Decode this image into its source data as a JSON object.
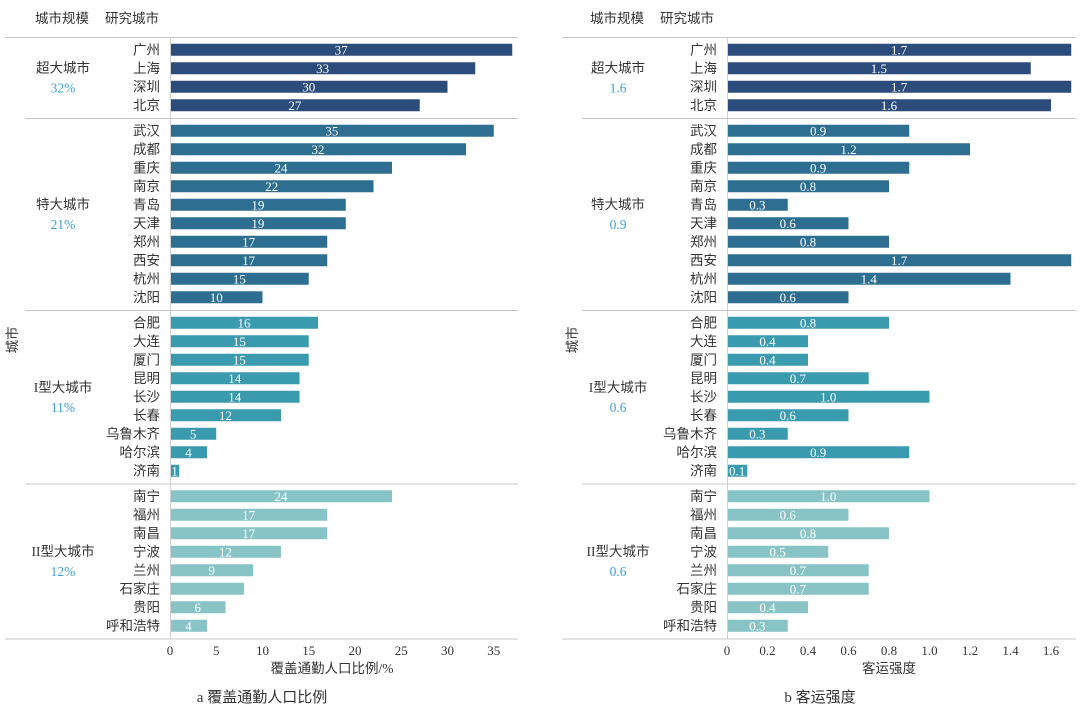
{
  "chart_data": [
    {
      "type": "bar",
      "orientation": "horizontal",
      "title": "a 覆盖通勤人口比例",
      "xlabel": "覆盖通勤人口比例/%",
      "ylabel": "城市",
      "header": {
        "group_column": "城市规模",
        "category_column": "研究城市"
      },
      "xlim": [
        0,
        37
      ],
      "grid": false,
      "xticks": [
        {
          "value": 0,
          "label": "0"
        },
        {
          "value": 5,
          "label": "5"
        },
        {
          "value": 10,
          "label": "10"
        },
        {
          "value": 15,
          "label": "15"
        },
        {
          "value": 20,
          "label": "20"
        },
        {
          "value": 25,
          "label": "25"
        },
        {
          "value": 30,
          "label": "30"
        },
        {
          "value": 35,
          "label": "35"
        }
      ],
      "summary_color": "#3a9fd3",
      "bar_label_color": "#ffffff",
      "groups": [
        {
          "name": "超大城市",
          "summary": "32%",
          "color": "#2c4c7c",
          "cities": [
            "广州",
            "上海",
            "深圳",
            "北京"
          ],
          "values": [
            37,
            33,
            30,
            27
          ],
          "labels": [
            "37",
            "33",
            "30",
            "27"
          ]
        },
        {
          "name": "特大城市",
          "summary": "21%",
          "color": "#2d6e91",
          "cities": [
            "武汉",
            "成都",
            "重庆",
            "南京",
            "青岛",
            "天津",
            "郑州",
            "西安",
            "杭州",
            "沈阳"
          ],
          "values": [
            35,
            32,
            24,
            22,
            19,
            19,
            17,
            17,
            15,
            10
          ],
          "labels": [
            "35",
            "32",
            "24",
            "22",
            "19",
            "19",
            "17",
            "17",
            "15",
            "10"
          ]
        },
        {
          "name": "I型大城市",
          "summary": "11%",
          "color": "#3a9aae",
          "cities": [
            "合肥",
            "大连",
            "厦门",
            "昆明",
            "长沙",
            "长春",
            "乌鲁木齐",
            "哈尔滨",
            "济南"
          ],
          "values": [
            16,
            15,
            15,
            14,
            14,
            12,
            5,
            4,
            1
          ],
          "labels": [
            "16",
            "15",
            "15",
            "14",
            "14",
            "12",
            "5",
            "4",
            "1"
          ]
        },
        {
          "name": "II型大城市",
          "summary": "12%",
          "color": "#88c4c5",
          "cities": [
            "南宁",
            "福州",
            "南昌",
            "宁波",
            "兰州",
            "石家庄",
            "贵阳",
            "呼和浩特"
          ],
          "values": [
            24,
            17,
            17,
            12,
            9,
            8,
            6,
            4
          ],
          "labels": [
            "24",
            "17",
            "17",
            "12",
            "9",
            null,
            "6",
            "4"
          ]
        }
      ]
    },
    {
      "type": "bar",
      "orientation": "horizontal",
      "title": "b 客运强度",
      "xlabel": "客运强度",
      "ylabel": "城市",
      "header": {
        "group_column": "城市规模",
        "category_column": "研究城市"
      },
      "xlim": [
        0,
        1.7
      ],
      "grid": false,
      "xticks": [
        {
          "value": 0,
          "label": "0"
        },
        {
          "value": 0.2,
          "label": "0.2"
        },
        {
          "value": 0.4,
          "label": "0.4"
        },
        {
          "value": 0.6,
          "label": "0.6"
        },
        {
          "value": 0.8,
          "label": "0.8"
        },
        {
          "value": 1.0,
          "label": "1.0"
        },
        {
          "value": 1.2,
          "label": "1.2"
        },
        {
          "value": 1.4,
          "label": "1.4"
        },
        {
          "value": 1.6,
          "label": "1.6"
        }
      ],
      "summary_color": "#3a9fd3",
      "bar_label_color": "#ffffff",
      "groups": [
        {
          "name": "超大城市",
          "summary": "1.6",
          "color": "#2c4c7c",
          "cities": [
            "广州",
            "上海",
            "深圳",
            "北京"
          ],
          "values": [
            1.7,
            1.5,
            1.7,
            1.6
          ],
          "labels": [
            "1.7",
            "1.5",
            "1.7",
            "1.6"
          ]
        },
        {
          "name": "特大城市",
          "summary": "0.9",
          "color": "#2d6e91",
          "cities": [
            "武汉",
            "成都",
            "重庆",
            "南京",
            "青岛",
            "天津",
            "郑州",
            "西安",
            "杭州",
            "沈阳"
          ],
          "values": [
            0.9,
            1.2,
            0.9,
            0.8,
            0.3,
            0.6,
            0.8,
            1.7,
            1.4,
            0.6
          ],
          "labels": [
            "0.9",
            "1.2",
            "0.9",
            "0.8",
            "0.3",
            "0.6",
            "0.8",
            "1.7",
            "1.4",
            "0.6"
          ]
        },
        {
          "name": "I型大城市",
          "summary": "0.6",
          "color": "#3a9aae",
          "cities": [
            "合肥",
            "大连",
            "厦门",
            "昆明",
            "长沙",
            "长春",
            "乌鲁木齐",
            "哈尔滨",
            "济南"
          ],
          "values": [
            0.8,
            0.4,
            0.4,
            0.7,
            1.0,
            0.6,
            0.3,
            0.9,
            0.1
          ],
          "labels": [
            "0.8",
            "0.4",
            "0.4",
            "0.7",
            "1.0",
            "0.6",
            "0.3",
            "0.9",
            "0.1"
          ]
        },
        {
          "name": "II型大城市",
          "summary": "0.6",
          "color": "#88c4c5",
          "cities": [
            "南宁",
            "福州",
            "南昌",
            "宁波",
            "兰州",
            "石家庄",
            "贵阳",
            "呼和浩特"
          ],
          "values": [
            1.0,
            0.6,
            0.8,
            0.5,
            0.7,
            0.7,
            0.4,
            0.3
          ],
          "labels": [
            "1.0",
            "0.6",
            "0.8",
            "0.5",
            "0.7",
            "0.7",
            "0.4",
            "0.3"
          ]
        }
      ]
    }
  ]
}
